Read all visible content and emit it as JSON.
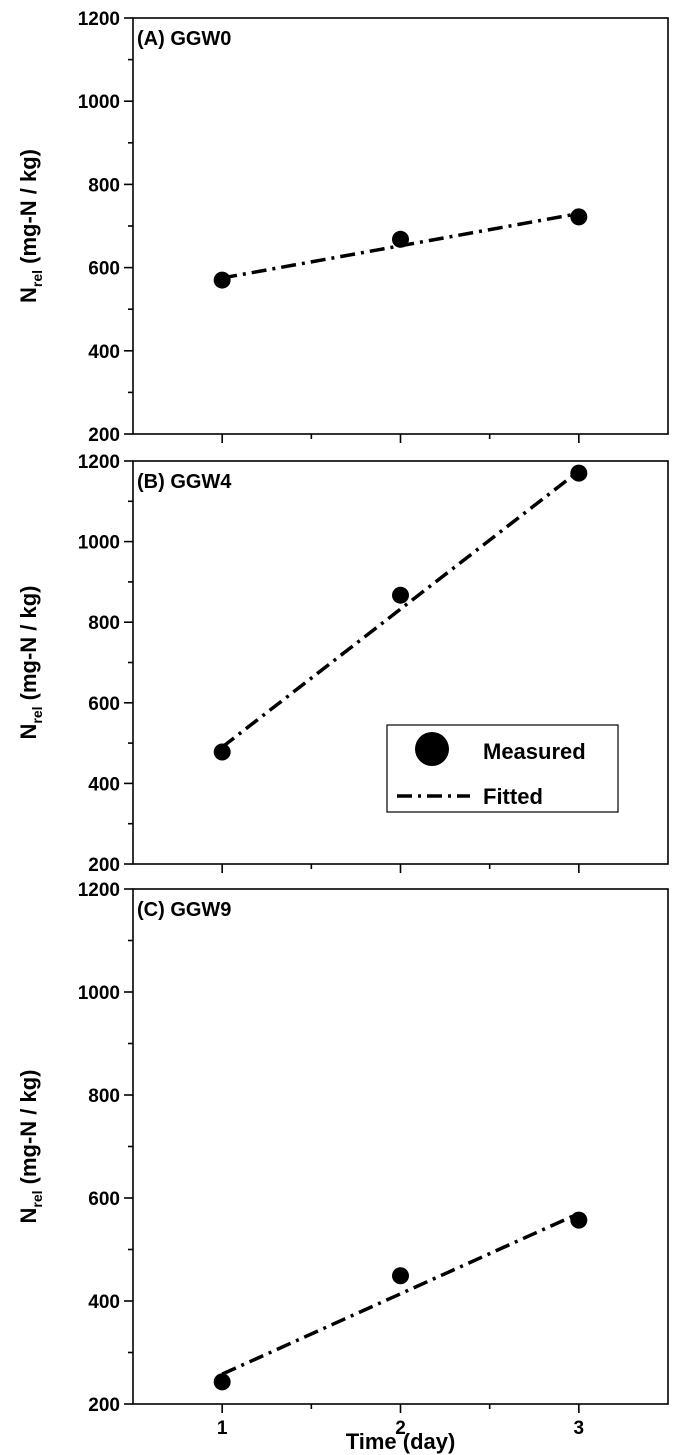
{
  "chart_data": [
    {
      "type": "scatter",
      "panel_label": "(A) GGW0",
      "xlabel": "",
      "ylabel_main": "N",
      "ylabel_sub": "rel",
      "ylabel_rest": " (mg-N / kg)",
      "xlim": [
        0.5,
        3.5
      ],
      "ylim": [
        200,
        1200
      ],
      "xticks": [
        1,
        2,
        3
      ],
      "yticks": [
        200,
        400,
        600,
        800,
        1000,
        1200
      ],
      "show_x_tick_labels": false,
      "series": [
        {
          "kind": "measured",
          "x": [
            1,
            2,
            3
          ],
          "y": [
            570,
            668,
            722
          ]
        },
        {
          "kind": "fitted",
          "x": [
            1,
            3
          ],
          "y": [
            575,
            730
          ]
        }
      ]
    },
    {
      "type": "scatter",
      "panel_label": "(B) GGW4",
      "xlabel": "",
      "ylabel_main": "N",
      "ylabel_sub": "rel",
      "ylabel_rest": " (mg-N / kg)",
      "xlim": [
        0.5,
        3.5
      ],
      "ylim": [
        200,
        1200
      ],
      "xticks": [
        1,
        2,
        3
      ],
      "yticks": [
        200,
        400,
        600,
        800,
        1000,
        1200
      ],
      "show_x_tick_labels": false,
      "series": [
        {
          "kind": "measured",
          "x": [
            1,
            2,
            3
          ],
          "y": [
            478,
            867,
            1170
          ]
        },
        {
          "kind": "fitted",
          "x": [
            1,
            3
          ],
          "y": [
            490,
            1175
          ]
        }
      ]
    },
    {
      "type": "scatter",
      "panel_label": "(C) GGW9",
      "xlabel": "Time (day)",
      "ylabel_main": "N",
      "ylabel_sub": "rel",
      "ylabel_rest": " (mg-N / kg)",
      "xlim": [
        0.5,
        3.5
      ],
      "ylim": [
        200,
        1200
      ],
      "xticks": [
        1,
        2,
        3
      ],
      "yticks": [
        200,
        400,
        600,
        800,
        1000,
        1200
      ],
      "show_x_tick_labels": true,
      "series": [
        {
          "kind": "measured",
          "x": [
            1,
            2,
            3
          ],
          "y": [
            243,
            449,
            557
          ]
        },
        {
          "kind": "fitted",
          "x": [
            1,
            3
          ],
          "y": [
            258,
            570
          ]
        }
      ]
    }
  ],
  "legend": {
    "measured_label": "Measured",
    "fitted_label": "Fitted",
    "location": "middle panel, lower-right"
  },
  "colors": {
    "marker": "#000000",
    "line": "#000000",
    "axes": "#000000",
    "background": "#ffffff"
  }
}
